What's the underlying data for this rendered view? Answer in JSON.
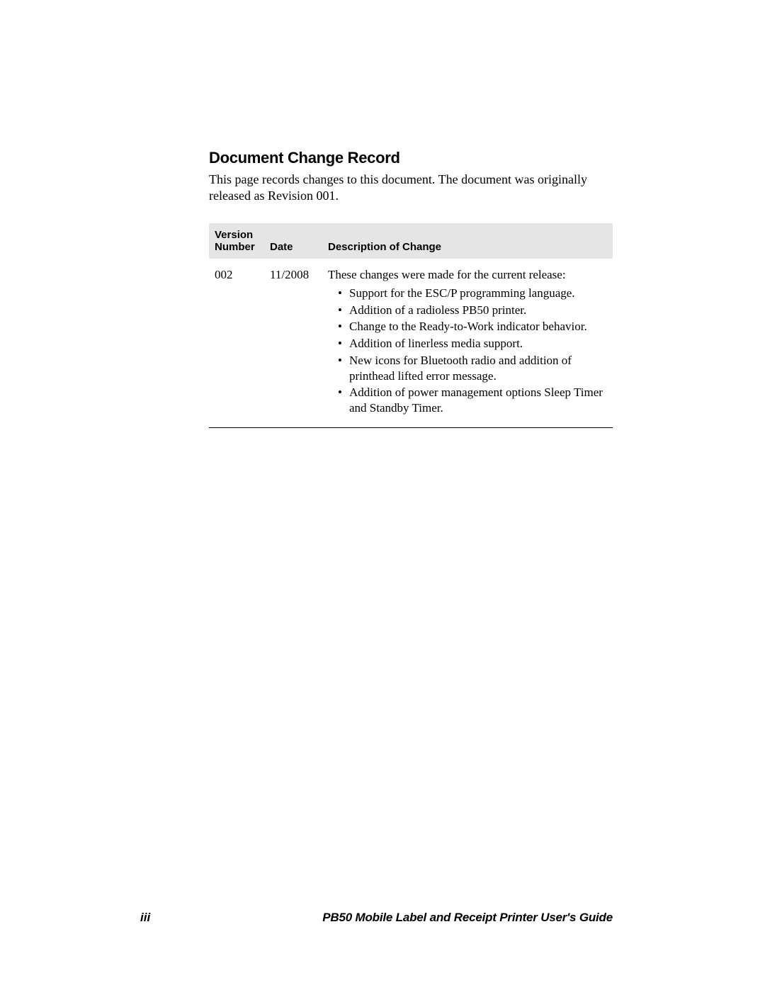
{
  "section": {
    "title": "Document Change Record",
    "intro": "This page records changes to this document. The document was originally released as Revision 001."
  },
  "table": {
    "headers": {
      "version": "Version Number",
      "date": "Date",
      "description": "Description of Change"
    },
    "header_bg": "#e5e5e5",
    "border_color": "#000000",
    "rows": [
      {
        "version": "002",
        "date": "11/2008",
        "intro": "These changes were made for the current release:",
        "bullets": [
          "Support for the ESC/P programming language.",
          "Addition of a radioless PB50 printer.",
          "Change to the Ready-to-Work indicator behavior.",
          "Addition of linerless media support.",
          "New icons for Bluetooth radio and addition of printhead lifted error message.",
          "Addition of power management options Sleep Timer and Standby Timer."
        ]
      }
    ]
  },
  "footer": {
    "page_number": "iii",
    "guide_title": "PB50 Mobile Label and Receipt Printer User's Guide"
  },
  "colors": {
    "background": "#ffffff",
    "text": "#000000",
    "header_bg": "#e5e5e5"
  },
  "fonts": {
    "heading_family": "Arial, Helvetica, sans-serif",
    "body_family": "Georgia, Times New Roman, serif",
    "heading_size_pt": 16,
    "body_size_pt": 13,
    "table_header_size_pt": 11
  }
}
